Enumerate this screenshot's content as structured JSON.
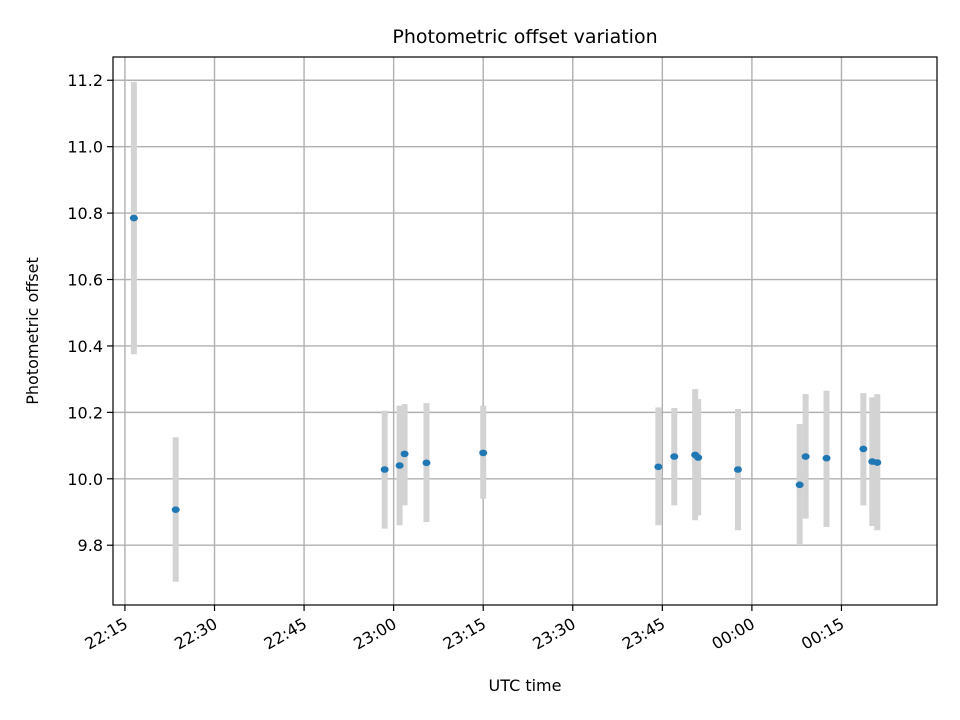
{
  "chart_data": {
    "type": "scatter",
    "title": "Photometric offset variation",
    "xlabel": "UTC time",
    "ylabel": "Photometric offset",
    "x_ticks": [
      "22:15",
      "22:30",
      "22:45",
      "23:00",
      "23:15",
      "23:30",
      "23:45",
      "00:00",
      "00:15"
    ],
    "y_ticks": [
      "9.8",
      "10.0",
      "10.2",
      "10.4",
      "10.6",
      "10.8",
      "11.0",
      "11.2"
    ],
    "xlim_minutes": [
      1333,
      1471
    ],
    "ylim": [
      9.62,
      11.27
    ],
    "grid": true,
    "colors": {
      "point": "#1f77b4",
      "errorbar": "#d3d3d3",
      "grid": "#b0b0b0"
    },
    "points": [
      {
        "time": "22:16:30",
        "y": 10.785,
        "err_low": 10.375,
        "err_high": 11.195
      },
      {
        "time": "22:23:30",
        "y": 9.907,
        "err_low": 9.69,
        "err_high": 10.125
      },
      {
        "time": "22:58:30",
        "y": 10.028,
        "err_low": 9.85,
        "err_high": 10.205
      },
      {
        "time": "23:01:00",
        "y": 10.04,
        "err_low": 9.86,
        "err_high": 10.22
      },
      {
        "time": "23:01:50",
        "y": 10.075,
        "err_low": 9.92,
        "err_high": 10.225
      },
      {
        "time": "23:05:30",
        "y": 10.048,
        "err_low": 9.87,
        "err_high": 10.228
      },
      {
        "time": "23:15:00",
        "y": 10.078,
        "err_low": 9.94,
        "err_high": 10.22
      },
      {
        "time": "23:44:20",
        "y": 10.036,
        "err_low": 9.86,
        "err_high": 10.215
      },
      {
        "time": "23:47:00",
        "y": 10.067,
        "err_low": 9.92,
        "err_high": 10.213
      },
      {
        "time": "23:50:30",
        "y": 10.072,
        "err_low": 9.875,
        "err_high": 10.27
      },
      {
        "time": "23:51:00",
        "y": 10.064,
        "err_low": 9.89,
        "err_high": 10.24
      },
      {
        "time": "23:57:40",
        "y": 10.028,
        "err_low": 9.845,
        "err_high": 10.21
      },
      {
        "time": "00:08:00",
        "y": 9.982,
        "err_low": 9.8,
        "err_high": 10.165
      },
      {
        "time": "00:09:00",
        "y": 10.067,
        "err_low": 9.88,
        "err_high": 10.255
      },
      {
        "time": "00:12:30",
        "y": 10.062,
        "err_low": 9.855,
        "err_high": 10.265
      },
      {
        "time": "00:18:40",
        "y": 10.09,
        "err_low": 9.92,
        "err_high": 10.258
      },
      {
        "time": "00:20:10",
        "y": 10.052,
        "err_low": 9.858,
        "err_high": 10.245
      },
      {
        "time": "00:21:00",
        "y": 10.049,
        "err_low": 9.845,
        "err_high": 10.255
      }
    ]
  }
}
